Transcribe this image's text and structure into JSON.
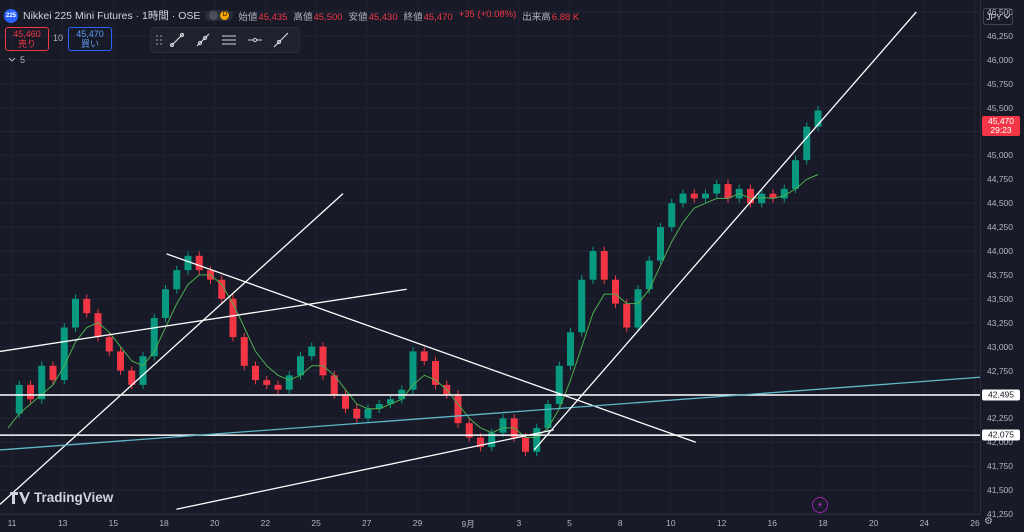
{
  "header": {
    "symbol_icon": "225",
    "title": "Nikkei 225 Mini Futures · 1時間 · OSE",
    "status_badge": "D",
    "ohlc": [
      {
        "label": "始値",
        "value": "45,435"
      },
      {
        "label": "高値",
        "value": "45,500"
      },
      {
        "label": "安値",
        "value": "45,430"
      },
      {
        "label": "終値",
        "value": "45,470"
      }
    ],
    "change": "+35 (+0.08%)",
    "volume_label": "出来高",
    "volume_value": "6.88 K"
  },
  "trade": {
    "sell_price": "45,460",
    "sell_label": "売り",
    "qty": "10",
    "buy_price": "45,470",
    "buy_label": "買い"
  },
  "indicator_toggle": "5",
  "currency": "JPY",
  "price_label": {
    "price": "45,470",
    "countdown": "29:23"
  },
  "level_labels": [
    {
      "text": "42,495",
      "price": 42495
    },
    {
      "text": "42,075",
      "price": 42075
    }
  ],
  "brand": "TradingView",
  "colors": {
    "bull": "#089981",
    "bear": "#f23645",
    "ma": "#4caf50",
    "accent": "#2962ff"
  },
  "chart_data": {
    "type": "candlestick",
    "ylim": [
      41250,
      46625
    ],
    "y_ticks": [
      "46,500",
      "46,250",
      "46,000",
      "45,750",
      "45,500",
      "45,250",
      "45,000",
      "44,750",
      "44,500",
      "44,250",
      "44,000",
      "43,750",
      "43,500",
      "43,250",
      "43,000",
      "42,750",
      "42,500",
      "42,250",
      "42,000",
      "41,750",
      "41,500",
      "41,250"
    ],
    "x_ticks": [
      "11",
      "13",
      "15",
      "18",
      "20",
      "22",
      "25",
      "27",
      "29",
      "9月",
      "3",
      "5",
      "8",
      "10",
      "12",
      "16",
      "18",
      "20",
      "24",
      "26"
    ],
    "series": [
      {
        "name": "close",
        "values": [
          42300,
          42600,
          42450,
          42800,
          42650,
          43200,
          43500,
          43350,
          43100,
          42950,
          42750,
          42600,
          42900,
          43300,
          43600,
          43800,
          43950,
          43800,
          43700,
          43500,
          43100,
          42800,
          42650,
          42600,
          42550,
          42700,
          42900,
          43000,
          42700,
          42500,
          42350,
          42250,
          42350,
          42400,
          42450,
          42550,
          42950,
          42850,
          42600,
          42500,
          42200,
          42050,
          41950,
          42100,
          42250,
          42050,
          41900,
          42150,
          42400,
          42800,
          43150,
          43700,
          44000,
          43700,
          43450,
          43200,
          43600,
          43900,
          44250,
          44500,
          44600,
          44550,
          44600,
          44700,
          44550,
          44650,
          44500,
          44600,
          44550,
          44650,
          44950,
          45300,
          45470
        ]
      },
      {
        "name": "MA",
        "values": [
          42150,
          42300,
          42400,
          42500,
          42600,
          42800,
          43050,
          43200,
          43250,
          43150,
          43000,
          42850,
          42800,
          42950,
          43200,
          43450,
          43650,
          43750,
          43750,
          43650,
          43450,
          43200,
          42950,
          42800,
          42700,
          42650,
          42700,
          42800,
          42800,
          42700,
          42550,
          42400,
          42350,
          42350,
          42400,
          42450,
          42600,
          42700,
          42650,
          42550,
          42400,
          42250,
          42150,
          42100,
          42150,
          42150,
          42050,
          42050,
          42150,
          42350,
          42650,
          43000,
          43350,
          43550,
          43550,
          43450,
          43450,
          43600,
          43850,
          44100,
          44300,
          44450,
          44500,
          44550,
          44550,
          44600,
          44550,
          44560,
          44550,
          44580,
          44650,
          44750,
          44800
        ]
      }
    ],
    "annotations": {
      "horizontal_lines": [
        42495,
        42075
      ],
      "trend_lines": [
        {
          "from": {
            "t": 0.0,
            "p": 41350
          },
          "to": {
            "t": 0.35,
            "p": 44600
          }
        },
        {
          "from": {
            "t": 0.0,
            "p": 42950
          },
          "to": {
            "t": 0.415,
            "p": 43600
          }
        },
        {
          "from": {
            "t": 0.17,
            "p": 43970
          },
          "to": {
            "t": 0.71,
            "p": 42000
          }
        },
        {
          "from": {
            "t": 0.0,
            "p": 41920
          },
          "to": {
            "t": 1.0,
            "p": 42680
          }
        },
        {
          "from": {
            "t": 0.18,
            "p": 41300
          },
          "to": {
            "t": 0.565,
            "p": 42130
          }
        },
        {
          "from": {
            "t": 0.545,
            "p": 41920
          },
          "to": {
            "t": 0.935,
            "p": 46500
          }
        }
      ]
    }
  }
}
